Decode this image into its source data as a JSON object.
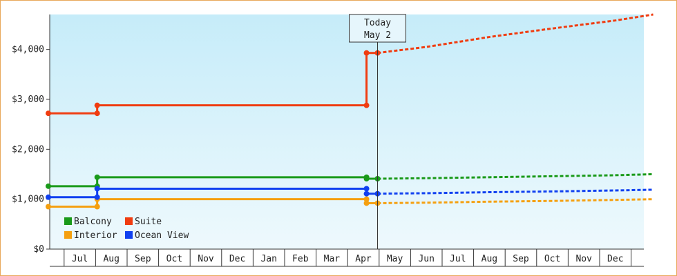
{
  "chart_data": {
    "type": "line",
    "title": "",
    "xlabel": "",
    "ylabel": "",
    "ylim": [
      0,
      4700
    ],
    "yticks": [
      0,
      1000,
      2000,
      3000,
      4000
    ],
    "ytick_labels": [
      "$0",
      "$1,000",
      "$2,000",
      "$3,000",
      "$4,000"
    ],
    "xtick_labels": [
      "Jul",
      "Aug",
      "Sep",
      "Oct",
      "Nov",
      "Dec",
      "Jan",
      "Feb",
      "Mar",
      "Apr",
      "May",
      "Jun",
      "Jul",
      "Aug",
      "Sep",
      "Oct",
      "Nov",
      "Dec"
    ],
    "xlim": [
      0,
      19.2
    ],
    "today": {
      "x": 10.45,
      "line1": "Today",
      "line2": "May 2"
    },
    "grid": false,
    "legend_position": "bottom-left",
    "series": [
      {
        "name": "Balcony",
        "color": "#1a9a1a",
        "history": [
          [
            0,
            1260
          ],
          [
            1.55,
            1260
          ],
          [
            1.55,
            1440
          ],
          [
            10.1,
            1440
          ],
          [
            10.1,
            1410
          ],
          [
            10.45,
            1410
          ]
        ],
        "markers": [
          [
            0,
            1260
          ],
          [
            1.55,
            1260
          ],
          [
            1.55,
            1440
          ],
          [
            10.1,
            1440
          ],
          [
            10.1,
            1410
          ],
          [
            10.45,
            1410
          ]
        ],
        "forecast": [
          [
            10.45,
            1410
          ],
          [
            12,
            1420
          ],
          [
            14,
            1440
          ],
          [
            16,
            1460
          ],
          [
            18,
            1480
          ],
          [
            19.2,
            1500
          ]
        ]
      },
      {
        "name": "Suite",
        "color": "#f03c10",
        "history": [
          [
            0,
            2720
          ],
          [
            1.55,
            2720
          ],
          [
            1.55,
            2880
          ],
          [
            10.1,
            2880
          ],
          [
            10.1,
            3930
          ],
          [
            10.45,
            3930
          ]
        ],
        "markers": [
          [
            0,
            2720
          ],
          [
            1.55,
            2720
          ],
          [
            1.55,
            2880
          ],
          [
            10.1,
            2880
          ],
          [
            10.1,
            3930
          ],
          [
            10.45,
            3930
          ]
        ],
        "forecast": [
          [
            10.45,
            3930
          ],
          [
            12,
            4050
          ],
          [
            14,
            4250
          ],
          [
            16,
            4420
          ],
          [
            18,
            4580
          ],
          [
            19.2,
            4700
          ]
        ]
      },
      {
        "name": "Interior",
        "color": "#f5a010",
        "history": [
          [
            0,
            850
          ],
          [
            1.55,
            850
          ],
          [
            1.55,
            1000
          ],
          [
            10.1,
            1000
          ],
          [
            10.1,
            920
          ],
          [
            10.45,
            920
          ]
        ],
        "markers": [
          [
            0,
            850
          ],
          [
            1.55,
            850
          ],
          [
            1.55,
            1000
          ],
          [
            10.1,
            1000
          ],
          [
            10.1,
            920
          ],
          [
            10.45,
            920
          ]
        ],
        "forecast": [
          [
            10.45,
            920
          ],
          [
            12,
            930
          ],
          [
            14,
            950
          ],
          [
            16,
            965
          ],
          [
            18,
            985
          ],
          [
            19.2,
            1000
          ]
        ]
      },
      {
        "name": "Ocean View",
        "color": "#1040f0",
        "history": [
          [
            0,
            1040
          ],
          [
            1.55,
            1040
          ],
          [
            1.55,
            1210
          ],
          [
            10.1,
            1210
          ],
          [
            10.1,
            1110
          ],
          [
            10.45,
            1110
          ]
        ],
        "markers": [
          [
            0,
            1040
          ],
          [
            1.55,
            1040
          ],
          [
            1.55,
            1210
          ],
          [
            10.1,
            1210
          ],
          [
            10.1,
            1110
          ],
          [
            10.45,
            1110
          ]
        ],
        "forecast": [
          [
            10.45,
            1110
          ],
          [
            12,
            1120
          ],
          [
            14,
            1140
          ],
          [
            16,
            1155
          ],
          [
            18,
            1175
          ],
          [
            19.2,
            1190
          ]
        ]
      }
    ],
    "legend_order": [
      "Balcony",
      "Suite",
      "Interior",
      "Ocean View"
    ]
  }
}
